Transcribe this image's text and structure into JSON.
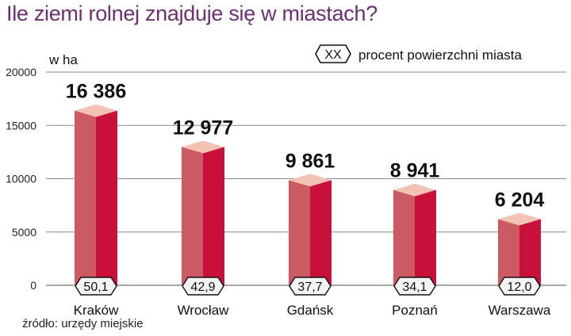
{
  "title": "Ile ziemi rolnej znajduje się w miastach?",
  "unit_label": "w ha",
  "legend": {
    "symbol": "XX",
    "text": "procent powierzchni miasta"
  },
  "source": "źródło: urzędy miejskie",
  "colors": {
    "title": "#6b2f72",
    "bar_left": "#cc5a63",
    "bar_right": "#c8103a",
    "bar_top": "#f2c2b4",
    "grid": "#8a8a8a",
    "tag_fill": "#f4f4f4"
  },
  "chart_data": {
    "type": "bar",
    "title": "Ile ziemi rolnej znajduje się w miastach?",
    "ylabel": "w ha",
    "ylim": [
      0,
      20000
    ],
    "yticks": [
      0,
      5000,
      10000,
      15000,
      20000
    ],
    "ytick_labels": [
      "0",
      "5000",
      "10000",
      "15000",
      "20000"
    ],
    "grid": true,
    "categories": [
      "Kraków",
      "Wrocław",
      "Gdańsk",
      "Poznań",
      "Warszawa"
    ],
    "values": [
      16386,
      12977,
      9861,
      8941,
      6204
    ],
    "value_labels": [
      "16 386",
      "12 977",
      "9 861",
      "8 941",
      "6 204"
    ],
    "percent_labels": [
      "50,1",
      "42,9",
      "37,7",
      "34,1",
      "12,0"
    ]
  }
}
